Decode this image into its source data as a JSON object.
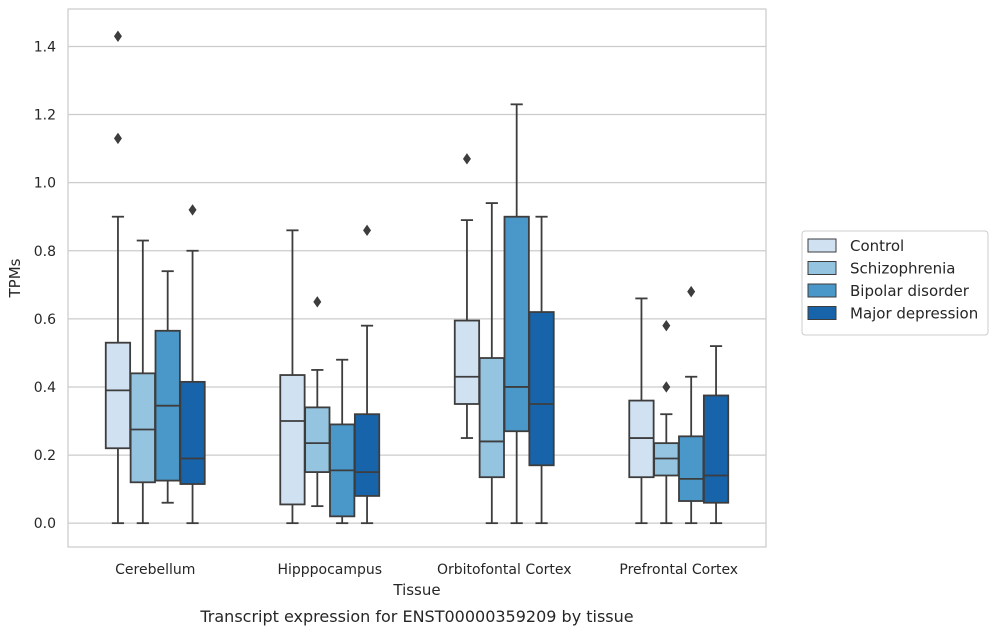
{
  "chart_data": {
    "type": "boxplot",
    "title": "",
    "caption": "Transcript expression for ENST00000359209 by tissue",
    "xlabel": "Tissue",
    "ylabel": "TPMs",
    "ylim": [
      -0.07,
      1.51
    ],
    "yticks": [
      0.0,
      0.2,
      0.4,
      0.6,
      0.8,
      1.0,
      1.2,
      1.4
    ],
    "ytick_labels": [
      "0.0",
      "0.2",
      "0.4",
      "0.6",
      "0.8",
      "1.0",
      "1.2",
      "1.4"
    ],
    "grid": "horizontal",
    "legend_position": "right",
    "categories": [
      "Cerebellum",
      "Hipppocampus",
      "Orbitofontal Cortex",
      "Prefrontal Cortex"
    ],
    "series": [
      {
        "name": "Control",
        "color": "#d0e1f2",
        "boxes": [
          {
            "whislo": 0.0,
            "q1": 0.22,
            "med": 0.39,
            "q3": 0.53,
            "whishi": 0.9,
            "fliers": [
              1.13,
              1.43
            ]
          },
          {
            "whislo": 0.0,
            "q1": 0.055,
            "med": 0.3,
            "q3": 0.435,
            "whishi": 0.86,
            "fliers": []
          },
          {
            "whislo": 0.25,
            "q1": 0.35,
            "med": 0.43,
            "q3": 0.595,
            "whishi": 0.89,
            "fliers": [
              1.07
            ]
          },
          {
            "whislo": 0.0,
            "q1": 0.135,
            "med": 0.25,
            "q3": 0.36,
            "whishi": 0.66,
            "fliers": []
          }
        ]
      },
      {
        "name": "Schizophrenia",
        "color": "#94c4df",
        "boxes": [
          {
            "whislo": 0.0,
            "q1": 0.12,
            "med": 0.275,
            "q3": 0.44,
            "whishi": 0.83,
            "fliers": []
          },
          {
            "whislo": 0.05,
            "q1": 0.15,
            "med": 0.235,
            "q3": 0.34,
            "whishi": 0.45,
            "fliers": [
              0.65
            ]
          },
          {
            "whislo": 0.0,
            "q1": 0.135,
            "med": 0.24,
            "q3": 0.485,
            "whishi": 0.94,
            "fliers": []
          },
          {
            "whislo": 0.0,
            "q1": 0.14,
            "med": 0.19,
            "q3": 0.235,
            "whishi": 0.32,
            "fliers": [
              0.4,
              0.58
            ]
          }
        ]
      },
      {
        "name": "Bipolar disorder",
        "color": "#4a98c9",
        "boxes": [
          {
            "whislo": 0.06,
            "q1": 0.125,
            "med": 0.345,
            "q3": 0.565,
            "whishi": 0.74,
            "fliers": []
          },
          {
            "whislo": 0.0,
            "q1": 0.02,
            "med": 0.155,
            "q3": 0.29,
            "whishi": 0.48,
            "fliers": []
          },
          {
            "whislo": 0.0,
            "q1": 0.27,
            "med": 0.4,
            "q3": 0.9,
            "whishi": 1.23,
            "fliers": []
          },
          {
            "whislo": 0.0,
            "q1": 0.065,
            "med": 0.13,
            "q3": 0.255,
            "whishi": 0.43,
            "fliers": [
              0.68
            ]
          }
        ]
      },
      {
        "name": "Major depression",
        "color": "#1764ab",
        "boxes": [
          {
            "whislo": 0.0,
            "q1": 0.115,
            "med": 0.19,
            "q3": 0.415,
            "whishi": 0.8,
            "fliers": [
              0.92
            ]
          },
          {
            "whislo": 0.0,
            "q1": 0.08,
            "med": 0.15,
            "q3": 0.32,
            "whishi": 0.58,
            "fliers": [
              0.86
            ]
          },
          {
            "whislo": 0.0,
            "q1": 0.17,
            "med": 0.35,
            "q3": 0.62,
            "whishi": 0.9,
            "fliers": []
          },
          {
            "whislo": 0.0,
            "q1": 0.06,
            "med": 0.14,
            "q3": 0.375,
            "whishi": 0.52,
            "fliers": []
          }
        ]
      }
    ]
  }
}
